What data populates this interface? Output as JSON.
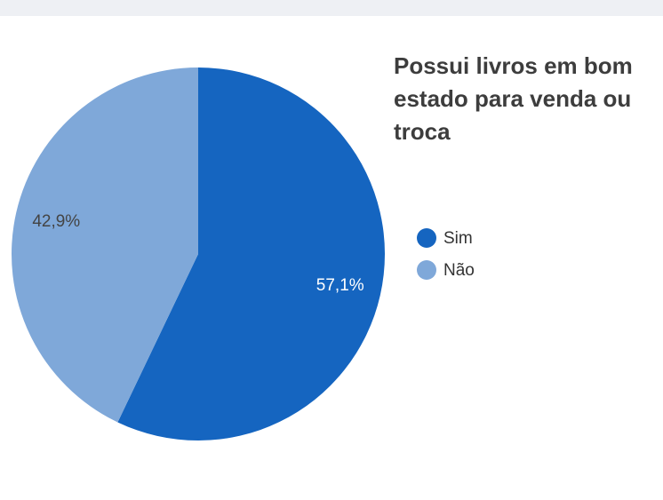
{
  "chart_data": {
    "type": "pie",
    "title": "Possui livros em bom estado para venda ou troca",
    "categories": [
      "Sim",
      "Não"
    ],
    "values": [
      57.1,
      42.9
    ],
    "value_labels": [
      "57,1%",
      "42,9%"
    ],
    "colors": [
      "#1565c0",
      "#7fa8d9"
    ],
    "legend": "right"
  }
}
